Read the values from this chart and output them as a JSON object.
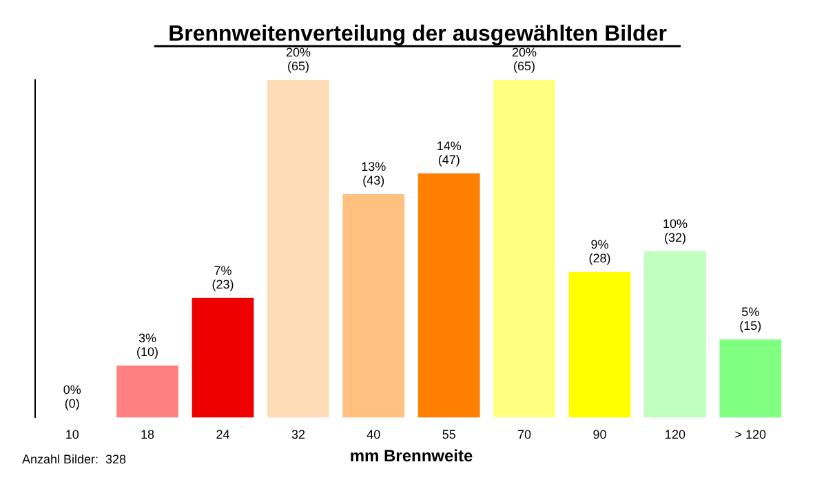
{
  "chart_data": {
    "type": "bar",
    "title": "Brennweitenverteilung der ausgewählten Bilder",
    "xlabel": "mm Brennweite",
    "categories": [
      "10",
      "18",
      "24",
      "32",
      "40",
      "55",
      "70",
      "90",
      "120",
      "> 120"
    ],
    "values": [
      0,
      10,
      23,
      65,
      43,
      47,
      65,
      28,
      32,
      15
    ],
    "colors": [
      "#ff8080",
      "#ff8080",
      "#ee0000",
      "#ffdcb8",
      "#ffc080",
      "#ff8000",
      "#ffff80",
      "#ffff00",
      "#c0ffc0",
      "#80ff80"
    ],
    "value_labels": [
      "0%\n(0)",
      "3%\n(10)",
      "7%\n(23)",
      "20%\n(65)",
      "13%\n(43)",
      "14%\n(47)",
      "20%\n(65)",
      "9%\n(28)",
      "10%\n(32)",
      "5%\n(15)"
    ],
    "annotations": [
      "Anzahl Bilder:  328"
    ],
    "tick_labels": "x"
  }
}
